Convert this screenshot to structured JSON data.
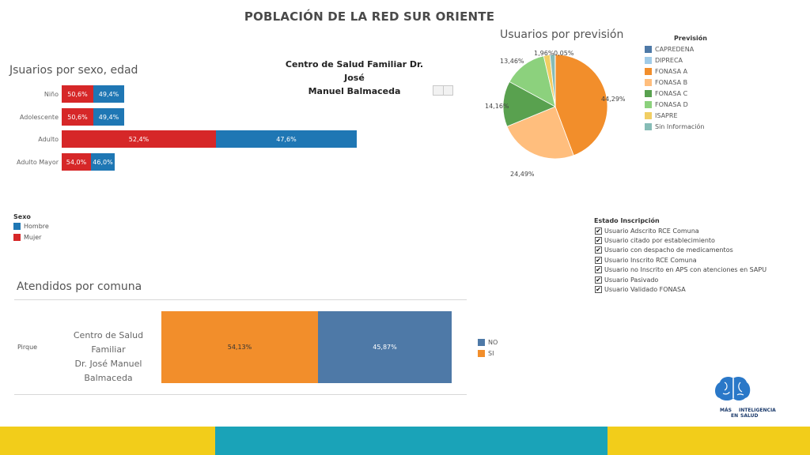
{
  "header": {
    "title": "POBLACIÓN DE LA RED SUR ORIENTE"
  },
  "sex_age": {
    "title": "Jsuarios por sexo, edad",
    "center_name_line1": "Centro de Salud Familiar Dr. José",
    "center_name_line2": "Manuel Balmaceda",
    "rows": [
      {
        "label": "Niño",
        "mujer": "50,6%",
        "hombre": "49,4%"
      },
      {
        "label": "Adolescente",
        "mujer": "50,6%",
        "hombre": "49,4%"
      },
      {
        "label": "Adulto",
        "mujer": "52,4%",
        "hombre": "47,6%"
      },
      {
        "label": "Adulto Mayor",
        "mujer": "54,0%",
        "hombre": "46,0%"
      }
    ],
    "legend": {
      "title": "Sexo",
      "hombre": "Hombre",
      "mujer": "Mujer"
    },
    "colors": {
      "hombre": "#1f77b4",
      "mujer": "#d62728"
    }
  },
  "prevision": {
    "title": "Usuarios por previsión",
    "legend_title": "Previsión",
    "items": [
      {
        "name": "CAPREDENA",
        "color": "#4e79a7"
      },
      {
        "name": "DIPRECA",
        "color": "#a0cbe8"
      },
      {
        "name": "FONASA A",
        "color": "#f28e2b"
      },
      {
        "name": "FONASA B",
        "color": "#ffbe7d"
      },
      {
        "name": "FONASA C",
        "color": "#59a14f"
      },
      {
        "name": "FONASA D",
        "color": "#8cd17d"
      },
      {
        "name": "ISAPRE",
        "color": "#f1ce63"
      },
      {
        "name": "Sin Información",
        "color": "#86bcb6"
      }
    ]
  },
  "chart_data": {
    "type": "pie",
    "title": "Usuarios por previsión",
    "slices": [
      {
        "name": "FONASA A",
        "value": 44.29,
        "label": "44,29%"
      },
      {
        "name": "FONASA B",
        "value": 24.49,
        "label": "24,49%"
      },
      {
        "name": "FONASA C",
        "value": 14.16,
        "label": "14,16%"
      },
      {
        "name": "FONASA D",
        "value": 13.46,
        "label": "13,46%"
      },
      {
        "name": "ISAPRE",
        "value": 1.96,
        "label": "1,96%"
      },
      {
        "name": "Sin Información",
        "value": 1.59,
        "label": ""
      },
      {
        "name": "CAPREDENA",
        "value": 0.05,
        "label": "0,05%"
      }
    ]
  },
  "estado": {
    "title": "Estado Inscripción",
    "items": [
      "Usuario Adscrito RCE Comuna",
      "Usuario citado por establecimiento",
      "Usuario con despacho de medicamentos",
      "Usuario Inscrito RCE Comuna",
      "Usuario no Inscrito en APS con atenciones en SAPU",
      "Usuario Pasivado",
      "Usuario Validado FONASA"
    ]
  },
  "atendidos": {
    "title": "Atendidos por comuna",
    "comuna": "Pirque",
    "cesfam_line1": "Centro de Salud Familiar",
    "cesfam_line2": "Dr. José Manuel",
    "cesfam_line3": "Balmaceda",
    "si_label": "54,13%",
    "si_value": 54.13,
    "no_label": "45,87%",
    "no_value": 45.87,
    "legend_no": "NO",
    "legend_si": "SI",
    "colors": {
      "si": "#f28e2b",
      "no": "#4e79a7"
    }
  },
  "logo": {
    "line1": "MÁS",
    "line2": "INTELIGENCIA",
    "line3": "EN",
    "line4": "SALUD"
  },
  "footer_colors": {
    "yellow": "#f2cd1a",
    "teal": "#1aa3b8"
  }
}
